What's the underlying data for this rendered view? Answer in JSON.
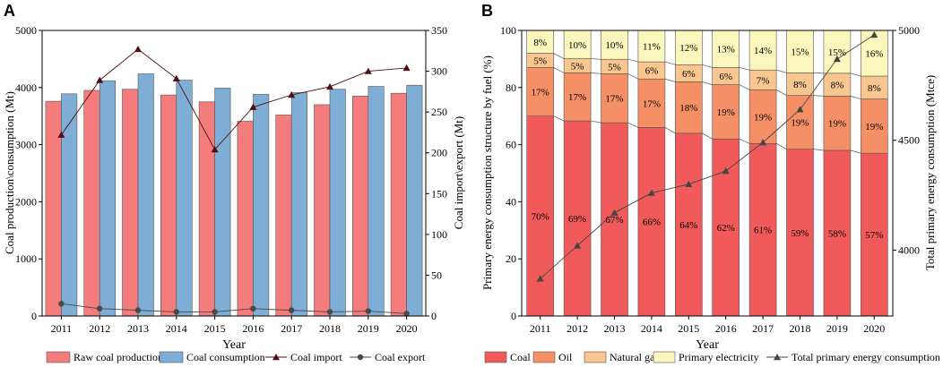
{
  "chart_data": [
    {
      "panel": "A",
      "type": "bar",
      "xlabel": "Year",
      "ylabel_left": "Coal production\\consumption (Mt)",
      "ylabel_right": "Coal import\\export (Mt)",
      "ylim_left": [
        0,
        5000
      ],
      "ylim_right": [
        0,
        350
      ],
      "yticks_left": [
        0,
        1000,
        2000,
        3000,
        4000,
        5000
      ],
      "yticks_right": [
        0,
        50,
        100,
        150,
        200,
        250,
        300,
        350
      ],
      "categories": [
        "2011",
        "2012",
        "2013",
        "2014",
        "2015",
        "2016",
        "2017",
        "2018",
        "2019",
        "2020"
      ],
      "series": [
        {
          "name": "Raw coal production",
          "kind": "bar",
          "axis": "left",
          "color": "#f47c7c",
          "values": [
            3760,
            3950,
            3970,
            3870,
            3750,
            3410,
            3520,
            3700,
            3850,
            3900
          ]
        },
        {
          "name": "Coal consumption",
          "kind": "bar",
          "axis": "left",
          "color": "#7eaed6",
          "values": [
            3890,
            4120,
            4240,
            4130,
            3990,
            3880,
            3910,
            3970,
            4020,
            4040
          ]
        },
        {
          "name": "Coal import",
          "kind": "line",
          "axis": "right",
          "color": "#4d0f0f",
          "marker": "triangle",
          "values": [
            222,
            289,
            327,
            291,
            204,
            256,
            271,
            281,
            300,
            304
          ]
        },
        {
          "name": "Coal export",
          "kind": "line",
          "axis": "right",
          "color": "#4a4a4a",
          "marker": "circle",
          "values": [
            15,
            9,
            7,
            5,
            5,
            9,
            7,
            5,
            6,
            3
          ]
        }
      ]
    },
    {
      "panel": "B",
      "type": "bar",
      "stacked": true,
      "xlabel": "Year",
      "ylabel_left": "Primary energy consumption structure by fuel (%)",
      "ylabel_right": "Total primary energy consumption (Mtce)",
      "ylim_left": [
        0,
        100
      ],
      "ylim_right": [
        3700,
        5000
      ],
      "yticks_left": [
        0,
        20,
        40,
        60,
        80,
        100
      ],
      "yticks_right": [
        4000,
        4500,
        5000
      ],
      "categories": [
        "2011",
        "2012",
        "2013",
        "2014",
        "2015",
        "2016",
        "2017",
        "2018",
        "2019",
        "2020"
      ],
      "series": [
        {
          "name": "Coal",
          "kind": "stack",
          "color": "#f15a5a",
          "values": [
            70,
            69,
            67,
            66,
            64,
            62,
            61,
            59,
            58,
            57
          ],
          "labels": [
            "70%",
            "69%",
            "67%",
            "66%",
            "64%",
            "62%",
            "61%",
            "59%",
            "58%",
            "57%"
          ]
        },
        {
          "name": "Oil",
          "kind": "stack",
          "color": "#f59066",
          "values": [
            17,
            17,
            17,
            17,
            18,
            19,
            19,
            19,
            19,
            19
          ],
          "labels": [
            "17%",
            "17%",
            "17%",
            "17%",
            "18%",
            "19%",
            "19%",
            "19%",
            "19%",
            "19%"
          ]
        },
        {
          "name": "Natural gas",
          "kind": "stack",
          "color": "#f8c68e",
          "values": [
            5,
            5,
            5,
            6,
            6,
            6,
            7,
            8,
            8,
            8
          ],
          "labels": [
            "5%",
            "5%",
            "5%",
            "6%",
            "6%",
            "6%",
            "7%",
            "8%",
            "8%",
            "8%"
          ]
        },
        {
          "name": "Primary electricity",
          "kind": "stack",
          "color": "#fbf6bc",
          "values": [
            8,
            10,
            10,
            11,
            12,
            13,
            14,
            15,
            15,
            16
          ],
          "labels": [
            "8%",
            "10%",
            "10%",
            "11%",
            "12%",
            "13%",
            "14%",
            "15%",
            "15%",
            "16%"
          ]
        },
        {
          "name": "Total primary energy consumption",
          "kind": "line",
          "axis": "right",
          "color": "#444444",
          "marker": "triangle",
          "values": [
            3870,
            4020,
            4170,
            4260,
            4300,
            4360,
            4490,
            4640,
            4870,
            4980
          ]
        }
      ]
    }
  ]
}
